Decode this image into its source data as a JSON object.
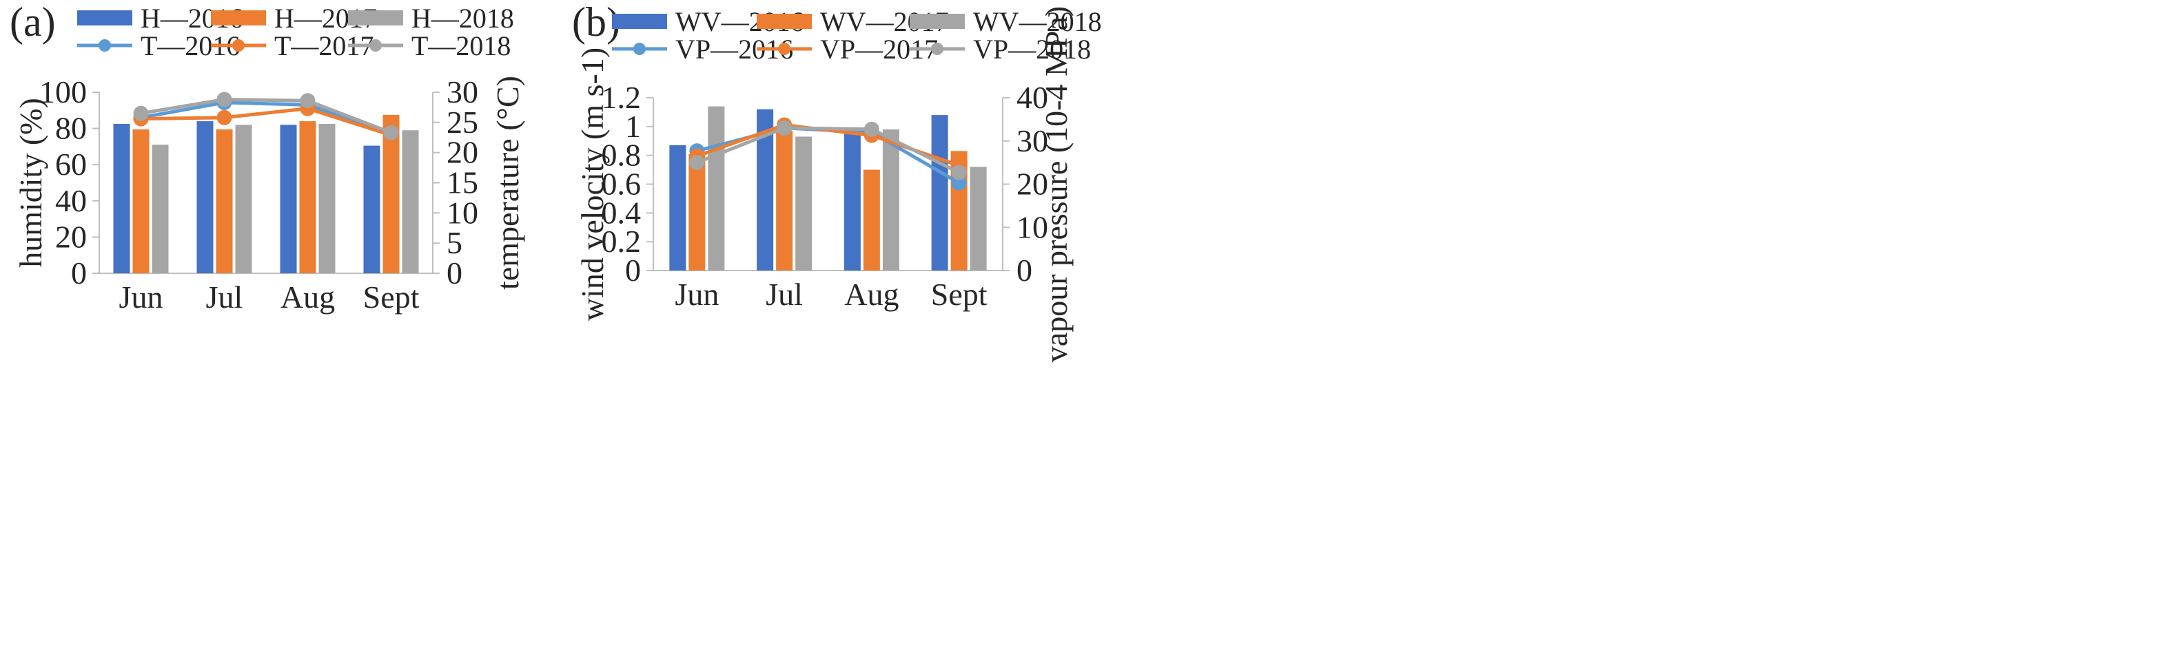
{
  "chart_data": [
    {
      "panel_label": "(a)",
      "type": "bar",
      "categories": [
        "Jun",
        "Jul",
        "Aug",
        "Sept"
      ],
      "xlabel": "",
      "ylabel": "humidity (%)",
      "y2label": "temperature (°C)",
      "ylim": [
        0,
        100
      ],
      "yticks": [
        0,
        20,
        40,
        60,
        80,
        100
      ],
      "y2lim": [
        0,
        30
      ],
      "y2ticks": [
        0,
        5,
        10,
        15,
        20,
        25,
        30
      ],
      "grid": false,
      "legend_position": "top",
      "bar_series": [
        {
          "name": "H—2016",
          "color": "#4472C4",
          "values": [
            82.5,
            84,
            82,
            70.5
          ]
        },
        {
          "name": "H—2017",
          "color": "#ED7D31",
          "values": [
            79.5,
            79.5,
            84,
            87.5
          ]
        },
        {
          "name": "H—2018",
          "color": "#A5A5A5",
          "values": [
            71,
            82,
            82.5,
            79
          ]
        }
      ],
      "line_series": [
        {
          "name": "T—2016",
          "color": "#5B9BD5",
          "values": [
            25.8,
            28.3,
            27.9,
            23.2
          ]
        },
        {
          "name": "T—2017",
          "color": "#ED7D31",
          "values": [
            25.6,
            25.8,
            27.3,
            22.9
          ]
        },
        {
          "name": "T—2018",
          "color": "#A5A5A5",
          "values": [
            26.5,
            28.8,
            28.6,
            23.3
          ]
        }
      ]
    },
    {
      "panel_label": "(b)",
      "type": "bar",
      "categories": [
        "Jun",
        "Jul",
        "Aug",
        "Sept"
      ],
      "xlabel": "",
      "ylabel": "wind velocity (m s-1)",
      "y2label": "vapour pressure (10-4 MPa)",
      "ylim": [
        0,
        1.2
      ],
      "yticks": [
        "0",
        "0.2",
        "0.4",
        "0.6",
        "0.8",
        "1",
        "1.2"
      ],
      "y2lim": [
        0,
        40
      ],
      "y2ticks": [
        0,
        10,
        20,
        30,
        40
      ],
      "grid": false,
      "legend_position": "top",
      "bar_series": [
        {
          "name": "WV—2016",
          "color": "#4472C4",
          "values": [
            0.87,
            1.12,
            0.97,
            1.08
          ]
        },
        {
          "name": "WV—2017",
          "color": "#ED7D31",
          "values": [
            0.81,
            0.97,
            0.7,
            0.83
          ]
        },
        {
          "name": "WV—2018",
          "color": "#A5A5A5",
          "values": [
            1.14,
            0.93,
            0.98,
            0.72
          ]
        }
      ],
      "line_series": [
        {
          "name": "VP—2016",
          "color": "#5B9BD5",
          "values": [
            27.7,
            33,
            32,
            20.3
          ]
        },
        {
          "name": "VP—2017",
          "color": "#ED7D31",
          "values": [
            26.5,
            33.7,
            31.3,
            24.3
          ]
        },
        {
          "name": "VP—2018",
          "color": "#A5A5A5",
          "values": [
            25,
            33,
            32.7,
            22.7
          ]
        }
      ]
    }
  ]
}
